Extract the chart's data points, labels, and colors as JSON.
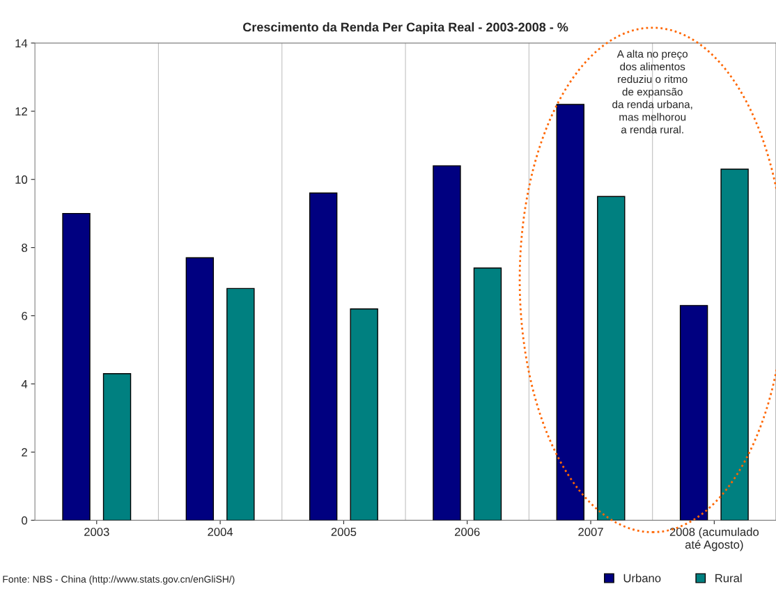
{
  "chart_data": {
    "type": "bar",
    "title": "Crescimento da Renda Per Capita Real - 2003-2008 - %",
    "categories": [
      "2003",
      "2004",
      "2005",
      "2006",
      "2007",
      "2008 (acumulado\naté Agosto)"
    ],
    "series": [
      {
        "name": "Urbano",
        "color": "#000080",
        "values": [
          9.0,
          7.7,
          9.6,
          10.4,
          12.2,
          6.3
        ]
      },
      {
        "name": "Rural",
        "color": "#008080",
        "values": [
          4.3,
          6.8,
          6.2,
          7.4,
          9.5,
          10.3
        ]
      }
    ],
    "ylim": [
      0,
      14
    ],
    "yticks": [
      0,
      2,
      4,
      6,
      8,
      10,
      12,
      14
    ],
    "grid": "x",
    "legend": "bottom right",
    "annotations": [
      "A alta no preço\ndos alimentos\nreduziu o ritmo\nde expansão\nda renda urbana,\nmas melhorou\na renda rural.",
      "Fonte: NBS - China (http://www.stats.gov.cn/enGliSH/)"
    ]
  }
}
